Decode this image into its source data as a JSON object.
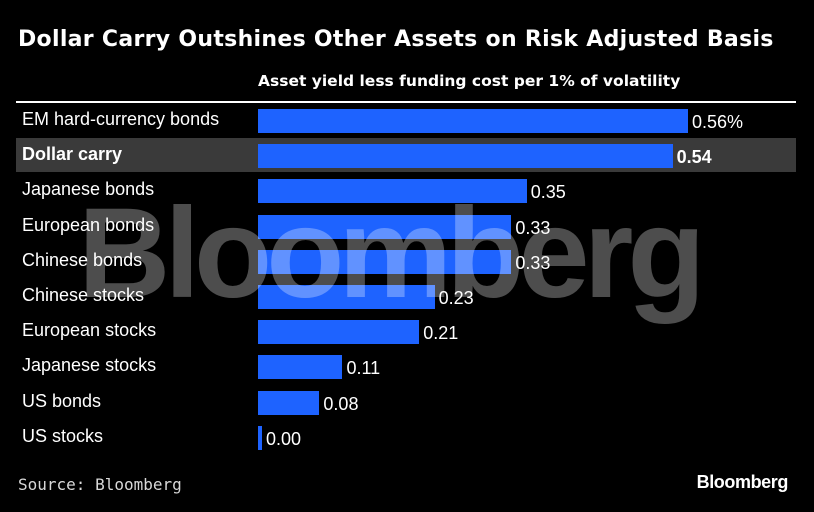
{
  "chart_data": {
    "type": "bar",
    "orientation": "horizontal",
    "title": "Dollar Carry Outshines Other Assets on Risk Adjusted Basis",
    "subtitle": "Asset yield less funding cost per 1% of volatility",
    "categories": [
      "EM hard-currency bonds",
      "Dollar carry",
      "Japanese bonds",
      "European bonds",
      "Chinese bonds",
      "Chinese stocks",
      "European stocks",
      "Japanese stocks",
      "US bonds",
      "US stocks"
    ],
    "values": [
      0.56,
      0.54,
      0.35,
      0.33,
      0.33,
      0.23,
      0.21,
      0.11,
      0.08,
      0.0
    ],
    "value_labels": [
      "0.56%",
      "0.54",
      "0.35",
      "0.33",
      "0.33",
      "0.23",
      "0.21",
      "0.11",
      "0.08",
      "0.00"
    ],
    "highlighted": "Dollar carry",
    "xlim": [
      0,
      0.56
    ],
    "bar_color": "#1e63ff",
    "highlight_color": "#3a3a3a"
  },
  "source": "Source: Bloomberg",
  "logo": "Bloomberg",
  "watermark": "Bloomberg"
}
